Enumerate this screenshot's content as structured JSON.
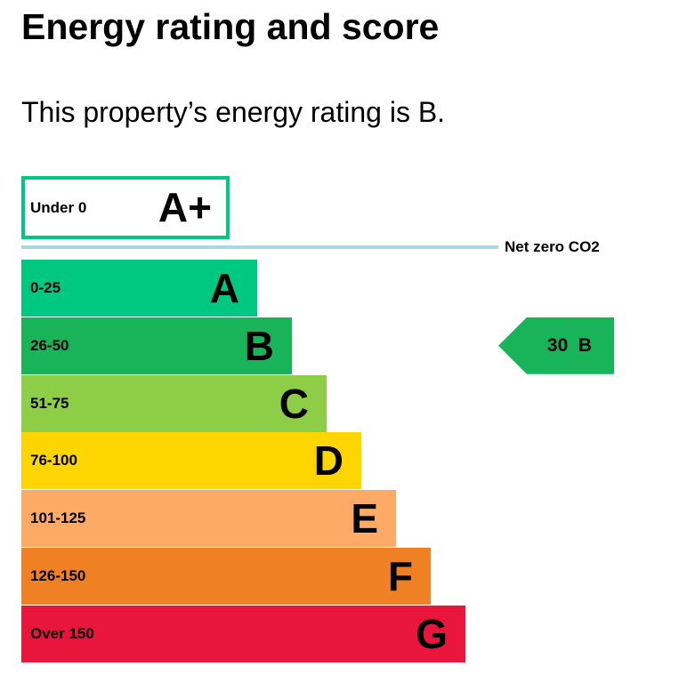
{
  "header": {
    "title": "Energy rating and score",
    "subtitle": "This property’s energy rating is B."
  },
  "colors": {
    "A+": "#00c781",
    "A": "#00c781",
    "B": "#19b459",
    "C": "#8dce46",
    "D": "#ffd500",
    "E": "#fcaa65",
    "F": "#ef8023",
    "G": "#e9153b",
    "net_zero_line": "#a6d7e4"
  },
  "chart_data": {
    "type": "bar",
    "bands": [
      {
        "letter": "A+",
        "range": "Under 0"
      },
      {
        "letter": "A",
        "range": "0-25"
      },
      {
        "letter": "B",
        "range": "26-50"
      },
      {
        "letter": "C",
        "range": "51-75"
      },
      {
        "letter": "D",
        "range": "76-100"
      },
      {
        "letter": "E",
        "range": "101-125"
      },
      {
        "letter": "F",
        "range": "126-150"
      },
      {
        "letter": "G",
        "range": "Over 150"
      }
    ],
    "net_zero_label": "Net zero CO2",
    "current": {
      "score": "30",
      "band": "B"
    }
  }
}
